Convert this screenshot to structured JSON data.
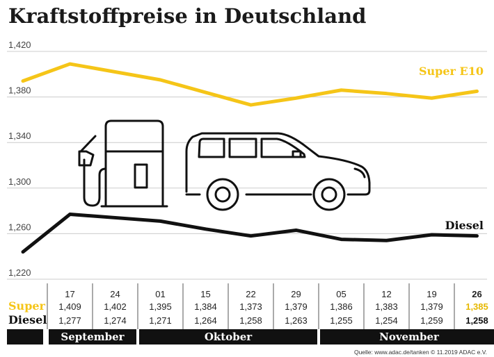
{
  "title": "Kraftstoffpreise in Deutschland",
  "source": "Quelle: www.adac.de/tanken   © 11.2019  ADAC e.V.",
  "colors": {
    "super": "#f5c518",
    "diesel": "#111111",
    "grid": "#cccccc",
    "month_bar": "#111111"
  },
  "icons": [
    "fuel-pump-icon",
    "car-icon"
  ],
  "chart_data": {
    "type": "line",
    "title": "Kraftstoffpreise in Deutschland",
    "y_ticks": [
      "1,420",
      "1,380",
      "1,340",
      "1,300",
      "1,260",
      "1,220"
    ],
    "y_tick_values": [
      1.42,
      1.38,
      1.34,
      1.3,
      1.26,
      1.22
    ],
    "ylim": [
      1.22,
      1.42
    ],
    "grid": true,
    "categories": [
      "17",
      "24",
      "01",
      "15",
      "22",
      "29",
      "05",
      "12",
      "19",
      "26"
    ],
    "months": [
      {
        "name": "September",
        "span": [
          0,
          1
        ]
      },
      {
        "name": "Oktober",
        "span": [
          2,
          5
        ]
      },
      {
        "name": "November",
        "span": [
          6,
          9
        ]
      }
    ],
    "series": [
      {
        "name": "Super E10",
        "row_label": "Super",
        "color": "#f5c518",
        "values": [
          1.409,
          1.402,
          1.395,
          1.384,
          1.373,
          1.379,
          1.386,
          1.383,
          1.379,
          1.385
        ],
        "labels": [
          "1,409",
          "1,402",
          "1,395",
          "1,384",
          "1,373",
          "1,379",
          "1,386",
          "1,383",
          "1,379",
          "1,385"
        ],
        "start_value": 1.394
      },
      {
        "name": "Diesel",
        "row_label": "Diesel",
        "color": "#111111",
        "values": [
          1.277,
          1.274,
          1.271,
          1.264,
          1.258,
          1.263,
          1.255,
          1.254,
          1.259,
          1.258
        ],
        "labels": [
          "1,277",
          "1,274",
          "1,271",
          "1,264",
          "1,258",
          "1,263",
          "1,255",
          "1,254",
          "1,259",
          "1,258"
        ],
        "start_value": 1.244
      }
    ]
  }
}
